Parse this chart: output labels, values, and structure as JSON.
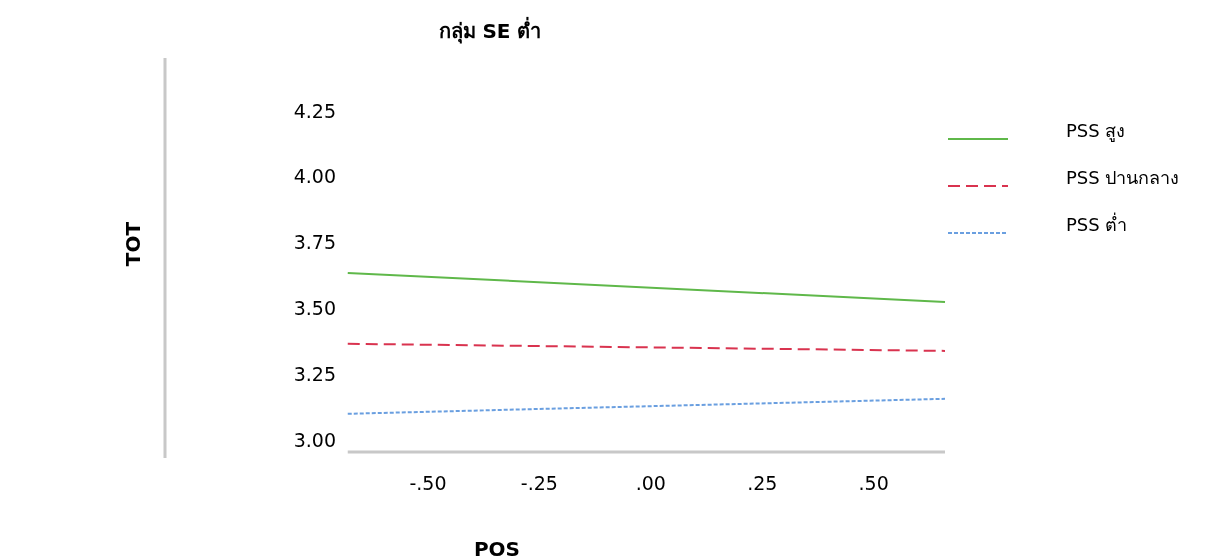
{
  "chart_data": {
    "type": "line",
    "title": "กลุ่ม SE ต่ำ",
    "xlabel": "POS",
    "ylabel": "TOT",
    "x": [
      -0.68,
      0.66
    ],
    "series": [
      {
        "name": "PSS สูง",
        "color": "#5fb84a",
        "line_style": "solid",
        "values": [
          3.633,
          3.523
        ]
      },
      {
        "name": "PSS ปานกลาง",
        "color": "#d9334f",
        "line_style": "dashed",
        "values": [
          3.364,
          3.337
        ]
      },
      {
        "name": "PSS ต่ำ",
        "color": "#6a9fe0",
        "line_style": "dotted",
        "values": [
          3.098,
          3.155
        ]
      }
    ],
    "xlim": [
      -1.09,
      0.66
    ],
    "ylim": [
      2.93,
      4.45
    ],
    "xticks": [
      {
        "value": -0.5,
        "label": "-.50"
      },
      {
        "value": -0.25,
        "label": "-.25"
      },
      {
        "value": 0,
        "label": ".00"
      },
      {
        "value": 0.25,
        "label": ".25"
      },
      {
        "value": 0.5,
        "label": ".50"
      }
    ],
    "yticks": [
      {
        "value": 3,
        "label": "3.00"
      },
      {
        "value": 3.25,
        "label": "3.25"
      },
      {
        "value": 3.5,
        "label": "3.50"
      },
      {
        "value": 3.75,
        "label": "3.75"
      },
      {
        "value": 4,
        "label": "4.00"
      },
      {
        "value": 4.25,
        "label": "4.25"
      }
    ],
    "grid": false,
    "legend": "right"
  }
}
